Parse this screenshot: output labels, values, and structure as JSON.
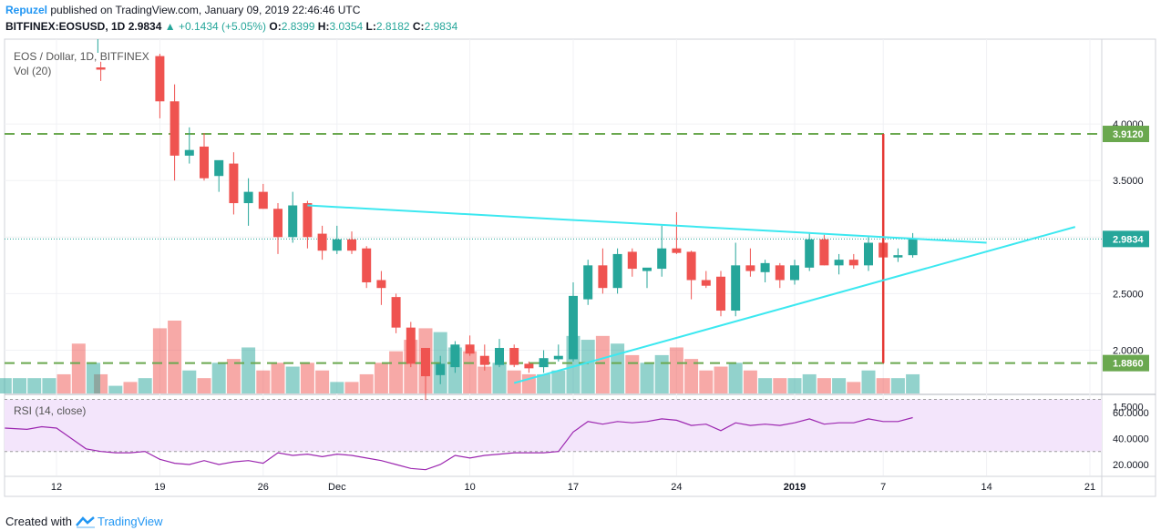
{
  "header": {
    "author": "Repuzel",
    "published_text": "published on TradingView.com, January 09, 2019 22:46:46 UTC",
    "symbol_line": "BITFINEX:EOSUSD, 1D",
    "last_price": "2.9834",
    "change": "+0.1434 (+5.05%)",
    "open_label": "O:",
    "open": "2.8399",
    "high_label": "H:",
    "high": "3.0354",
    "low_label": "L:",
    "low": "2.8182",
    "close_label": "C:",
    "close": "2.9834"
  },
  "footer": {
    "created_with": "Created with",
    "brand": "TradingView"
  },
  "colors": {
    "up": "#26a69a",
    "down": "#ef5350",
    "trend": "#3ce8f0",
    "level": "#6aa84f",
    "rsi": "#9c27b0",
    "rsi_band": "#f3e5fb"
  },
  "chart_data": {
    "type": "candlestick",
    "title": "EOS / Dollar, 1D, BITFINEX",
    "volume_label": "Vol (20)",
    "y_ticks": [
      "4.0000",
      "3.5000",
      "2.5000",
      "2.0000",
      "1.5000"
    ],
    "ylim": [
      1.25,
      4.45
    ],
    "x_labels": [
      {
        "label": "12",
        "day": 0,
        "bold": false
      },
      {
        "label": "19",
        "day": 7,
        "bold": false
      },
      {
        "label": "26",
        "day": 14,
        "bold": false
      },
      {
        "label": "Dec",
        "day": 19,
        "bold": false
      },
      {
        "label": "10",
        "day": 28,
        "bold": false
      },
      {
        "label": "17",
        "day": 35,
        "bold": false
      },
      {
        "label": "24",
        "day": 42,
        "bold": false
      },
      {
        "label": "2019",
        "day": 50,
        "bold": true
      },
      {
        "label": "7",
        "day": 56,
        "bold": false
      },
      {
        "label": "14",
        "day": 63,
        "bold": false
      },
      {
        "label": "21",
        "day": 70,
        "bold": false
      }
    ],
    "candles": [
      {
        "d": 3,
        "o": 4.5,
        "h": 4.55,
        "l": 4.38,
        "c": 4.48,
        "v": 5
      },
      {
        "d": 7,
        "o": 4.6,
        "h": 4.62,
        "l": 4.05,
        "c": 4.2,
        "v": 17
      },
      {
        "d": 8,
        "o": 4.2,
        "h": 4.35,
        "l": 3.5,
        "c": 3.72,
        "v": 19
      },
      {
        "d": 9,
        "o": 3.72,
        "h": 3.97,
        "l": 3.65,
        "c": 3.77,
        "v": 6
      },
      {
        "d": 10,
        "o": 3.8,
        "h": 3.92,
        "l": 3.5,
        "c": 3.52,
        "v": 4
      },
      {
        "d": 11,
        "o": 3.54,
        "h": 3.65,
        "l": 3.4,
        "c": 3.68,
        "v": 8
      },
      {
        "d": 12,
        "o": 3.65,
        "h": 3.75,
        "l": 3.2,
        "c": 3.3,
        "v": 9
      },
      {
        "d": 13,
        "o": 3.3,
        "h": 3.52,
        "l": 3.1,
        "c": 3.4,
        "v": 12
      },
      {
        "d": 14,
        "o": 3.4,
        "h": 3.47,
        "l": 3.25,
        "c": 3.25,
        "v": 6
      },
      {
        "d": 15,
        "o": 3.25,
        "h": 3.3,
        "l": 2.85,
        "c": 3.0,
        "v": 8
      },
      {
        "d": 16,
        "o": 3.0,
        "h": 3.4,
        "l": 2.95,
        "c": 3.28,
        "v": 7
      },
      {
        "d": 17,
        "o": 3.3,
        "h": 3.32,
        "l": 2.9,
        "c": 3.0,
        "v": 8
      },
      {
        "d": 18,
        "o": 3.03,
        "h": 3.1,
        "l": 2.8,
        "c": 2.88,
        "v": 6
      },
      {
        "d": 19,
        "o": 2.88,
        "h": 3.1,
        "l": 2.85,
        "c": 2.98,
        "v": 3
      },
      {
        "d": 20,
        "o": 2.98,
        "h": 3.05,
        "l": 2.85,
        "c": 2.88,
        "v": 3
      },
      {
        "d": 21,
        "o": 2.9,
        "h": 2.92,
        "l": 2.55,
        "c": 2.6,
        "v": 5
      },
      {
        "d": 22,
        "o": 2.62,
        "h": 2.7,
        "l": 2.4,
        "c": 2.55,
        "v": 8
      },
      {
        "d": 23,
        "o": 2.47,
        "h": 2.5,
        "l": 2.15,
        "c": 2.2,
        "v": 11
      },
      {
        "d": 24,
        "o": 2.2,
        "h": 2.25,
        "l": 1.85,
        "c": 1.88,
        "v": 14
      },
      {
        "d": 25,
        "o": 2.02,
        "h": 2.02,
        "l": 1.56,
        "c": 1.77,
        "v": 17
      },
      {
        "d": 26,
        "o": 1.78,
        "h": 1.95,
        "l": 1.7,
        "c": 1.88,
        "v": 16
      },
      {
        "d": 27,
        "o": 1.85,
        "h": 2.08,
        "l": 1.8,
        "c": 2.05,
        "v": 12
      },
      {
        "d": 28,
        "o": 2.05,
        "h": 2.13,
        "l": 1.95,
        "c": 1.97,
        "v": 11
      },
      {
        "d": 29,
        "o": 1.95,
        "h": 2.05,
        "l": 1.82,
        "c": 1.87,
        "v": 7
      },
      {
        "d": 30,
        "o": 1.87,
        "h": 2.1,
        "l": 1.85,
        "c": 2.02,
        "v": 8
      },
      {
        "d": 31,
        "o": 2.02,
        "h": 2.05,
        "l": 1.85,
        "c": 1.87,
        "v": 6
      },
      {
        "d": 32,
        "o": 1.88,
        "h": 1.9,
        "l": 1.8,
        "c": 1.84,
        "v": 5
      },
      {
        "d": 33,
        "o": 1.85,
        "h": 2.0,
        "l": 1.8,
        "c": 1.93,
        "v": 5
      },
      {
        "d": 34,
        "o": 1.92,
        "h": 2.05,
        "l": 1.9,
        "c": 1.95,
        "v": 6
      },
      {
        "d": 35,
        "o": 1.92,
        "h": 2.6,
        "l": 1.9,
        "c": 2.48,
        "v": 15
      },
      {
        "d": 36,
        "o": 2.45,
        "h": 2.8,
        "l": 2.4,
        "c": 2.75,
        "v": 14
      },
      {
        "d": 37,
        "o": 2.75,
        "h": 2.9,
        "l": 2.5,
        "c": 2.55,
        "v": 15
      },
      {
        "d": 38,
        "o": 2.55,
        "h": 2.9,
        "l": 2.5,
        "c": 2.85,
        "v": 13
      },
      {
        "d": 39,
        "o": 2.87,
        "h": 2.9,
        "l": 2.65,
        "c": 2.72,
        "v": 10
      },
      {
        "d": 40,
        "o": 2.7,
        "h": 2.72,
        "l": 2.55,
        "c": 2.73,
        "v": 8
      },
      {
        "d": 41,
        "o": 2.72,
        "h": 3.1,
        "l": 2.65,
        "c": 2.9,
        "v": 10
      },
      {
        "d": 42,
        "o": 2.9,
        "h": 3.22,
        "l": 2.85,
        "c": 2.86,
        "v": 12
      },
      {
        "d": 43,
        "o": 2.87,
        "h": 2.88,
        "l": 2.45,
        "c": 2.62,
        "v": 9
      },
      {
        "d": 44,
        "o": 2.62,
        "h": 2.7,
        "l": 2.55,
        "c": 2.57,
        "v": 6
      },
      {
        "d": 45,
        "o": 2.65,
        "h": 2.7,
        "l": 2.3,
        "c": 2.35,
        "v": 7
      },
      {
        "d": 46,
        "o": 2.35,
        "h": 2.95,
        "l": 2.3,
        "c": 2.75,
        "v": 8
      },
      {
        "d": 47,
        "o": 2.75,
        "h": 2.9,
        "l": 2.65,
        "c": 2.7,
        "v": 6
      },
      {
        "d": 48,
        "o": 2.69,
        "h": 2.8,
        "l": 2.6,
        "c": 2.77,
        "v": 4
      },
      {
        "d": 49,
        "o": 2.75,
        "h": 2.77,
        "l": 2.55,
        "c": 2.62,
        "v": 4
      },
      {
        "d": 50,
        "o": 2.62,
        "h": 2.8,
        "l": 2.58,
        "c": 2.75,
        "v": 4
      },
      {
        "d": 51,
        "o": 2.73,
        "h": 3.03,
        "l": 2.7,
        "c": 2.98,
        "v": 5
      },
      {
        "d": 52,
        "o": 2.98,
        "h": 3.02,
        "l": 2.75,
        "c": 2.75,
        "v": 4
      },
      {
        "d": 53,
        "o": 2.75,
        "h": 2.85,
        "l": 2.67,
        "c": 2.8,
        "v": 4
      },
      {
        "d": 54,
        "o": 2.8,
        "h": 2.85,
        "l": 2.72,
        "c": 2.75,
        "v": 3
      },
      {
        "d": 55,
        "o": 2.75,
        "h": 3.0,
        "l": 2.7,
        "c": 2.95,
        "v": 6
      },
      {
        "d": 56,
        "o": 2.95,
        "h": 2.97,
        "l": 2.75,
        "c": 2.82,
        "v": 4
      },
      {
        "d": 57,
        "o": 2.82,
        "h": 2.9,
        "l": 2.78,
        "c": 2.84,
        "v": 4
      },
      {
        "d": 58,
        "o": 2.84,
        "h": 3.0354,
        "l": 2.8182,
        "c": 2.9834,
        "v": 5
      }
    ],
    "volume_max": 19,
    "levels": [
      {
        "value": 3.912,
        "label": "3.9120"
      },
      {
        "value": 1.886,
        "label": "1.8860"
      }
    ],
    "last_price_label": "2.9834",
    "last_price_value": 2.9834,
    "vertical_marker": {
      "day": 56,
      "from": 3.912,
      "to": 1.886
    },
    "trendlines": [
      {
        "d1": 17,
        "v1": 3.28,
        "d2": 63,
        "v2": 2.95
      },
      {
        "d1": 31,
        "v1": 1.71,
        "d2": 69,
        "v2": 3.09
      }
    ],
    "rsi": {
      "label": "RSI (14, close)",
      "y_ticks": [
        "60.0000",
        "40.0000",
        "20.0000"
      ],
      "ylim": [
        15,
        75
      ],
      "band": [
        30,
        70
      ],
      "values": [
        [
          -3.5,
          48
        ],
        [
          -2,
          47
        ],
        [
          -1,
          49
        ],
        [
          0,
          48
        ],
        [
          1,
          40
        ],
        [
          2,
          32
        ],
        [
          3,
          30
        ],
        [
          4,
          29
        ],
        [
          5,
          29
        ],
        [
          6,
          30
        ],
        [
          7,
          24
        ],
        [
          8,
          21
        ],
        [
          9,
          20
        ],
        [
          10,
          23
        ],
        [
          11,
          20
        ],
        [
          12,
          22
        ],
        [
          13,
          23
        ],
        [
          14,
          21
        ],
        [
          15,
          29
        ],
        [
          16,
          27
        ],
        [
          17,
          28
        ],
        [
          18,
          26
        ],
        [
          19,
          28
        ],
        [
          20,
          27
        ],
        [
          21,
          25
        ],
        [
          22,
          23
        ],
        [
          23,
          20
        ],
        [
          24,
          17
        ],
        [
          25,
          16
        ],
        [
          26,
          20
        ],
        [
          27,
          27
        ],
        [
          28,
          25
        ],
        [
          29,
          27
        ],
        [
          30,
          28
        ],
        [
          31,
          29
        ],
        [
          32,
          29
        ],
        [
          33,
          29
        ],
        [
          34,
          30
        ],
        [
          35,
          45
        ],
        [
          36,
          53
        ],
        [
          37,
          51
        ],
        [
          38,
          53
        ],
        [
          39,
          52
        ],
        [
          40,
          53
        ],
        [
          41,
          55
        ],
        [
          42,
          54
        ],
        [
          43,
          50
        ],
        [
          44,
          51
        ],
        [
          45,
          46
        ],
        [
          46,
          52
        ],
        [
          47,
          50
        ],
        [
          48,
          51
        ],
        [
          49,
          50
        ],
        [
          50,
          52
        ],
        [
          51,
          55
        ],
        [
          52,
          51
        ],
        [
          53,
          52
        ],
        [
          54,
          52
        ],
        [
          55,
          55
        ],
        [
          56,
          53
        ],
        [
          57,
          53
        ],
        [
          58,
          56
        ]
      ]
    }
  }
}
